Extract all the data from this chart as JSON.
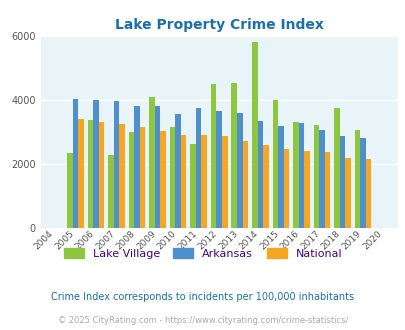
{
  "title": "Lake Property Crime Index",
  "years": [
    2004,
    2005,
    2006,
    2007,
    2008,
    2009,
    2010,
    2011,
    2012,
    2013,
    2014,
    2015,
    2016,
    2017,
    2018,
    2019,
    2020
  ],
  "lake_village": [
    null,
    2350,
    3370,
    2270,
    3000,
    4100,
    3160,
    2620,
    4500,
    4550,
    5820,
    4000,
    3300,
    3220,
    3750,
    3050,
    null
  ],
  "arkansas": [
    null,
    4050,
    4000,
    3960,
    3820,
    3800,
    3560,
    3760,
    3650,
    3600,
    3330,
    3190,
    3280,
    3060,
    2880,
    2820,
    null
  ],
  "national": [
    null,
    3400,
    3300,
    3250,
    3150,
    3040,
    2920,
    2920,
    2890,
    2730,
    2600,
    2480,
    2390,
    2360,
    2200,
    2140,
    null
  ],
  "colors": {
    "lake_village": "#8dc63f",
    "arkansas": "#4f8fcc",
    "national": "#f5a623"
  },
  "bg_color": "#e8f4f8",
  "ylim": [
    0,
    6000
  ],
  "yticks": [
    0,
    2000,
    4000,
    6000
  ],
  "legend_labels": [
    "Lake Village",
    "Arkansas",
    "National"
  ],
  "legend_text_color": "#4b0082",
  "footnote1": "Crime Index corresponds to incidents per 100,000 inhabitants",
  "footnote2": "© 2025 CityRating.com - https://www.cityrating.com/crime-statistics/",
  "footnote1_color": "#1a6faf",
  "footnote2_color": "#aaaaaa",
  "bar_width": 0.27
}
